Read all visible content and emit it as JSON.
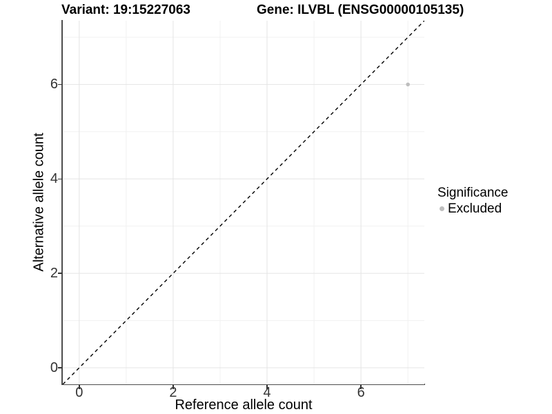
{
  "chart_data": {
    "type": "scatter",
    "title_left": "Variant: 19:15227063",
    "title_right": "Gene: ILVBL (ENSG00000105135)",
    "xlabel": "Reference allele count",
    "ylabel": "Alternative allele count",
    "xlim": [
      -0.35,
      7.35
    ],
    "ylim": [
      -0.35,
      7.35
    ],
    "x_major_ticks": [
      0,
      2,
      4,
      6
    ],
    "x_minor_ticks": [
      1,
      3,
      5,
      7
    ],
    "y_major_ticks": [
      0,
      2,
      4,
      6
    ],
    "y_minor_ticks": [
      1,
      3,
      5,
      7
    ],
    "grid": true,
    "reference_line": {
      "type": "identity",
      "style": "dashed",
      "color": "#000000"
    },
    "series": [
      {
        "name": "Excluded",
        "color": "#bebebe",
        "points": [
          [
            7,
            6
          ]
        ],
        "point_radius": 2.8
      }
    ],
    "legend": {
      "title": "Significance",
      "position": "right",
      "items": [
        {
          "label": "Excluded",
          "color": "#bebebe"
        }
      ]
    }
  },
  "colors": {
    "grid_major": "#e4e4e4",
    "grid_minor": "#f1f1f1",
    "axis_line": "#4d4d4d",
    "tick_text": "#333333"
  }
}
